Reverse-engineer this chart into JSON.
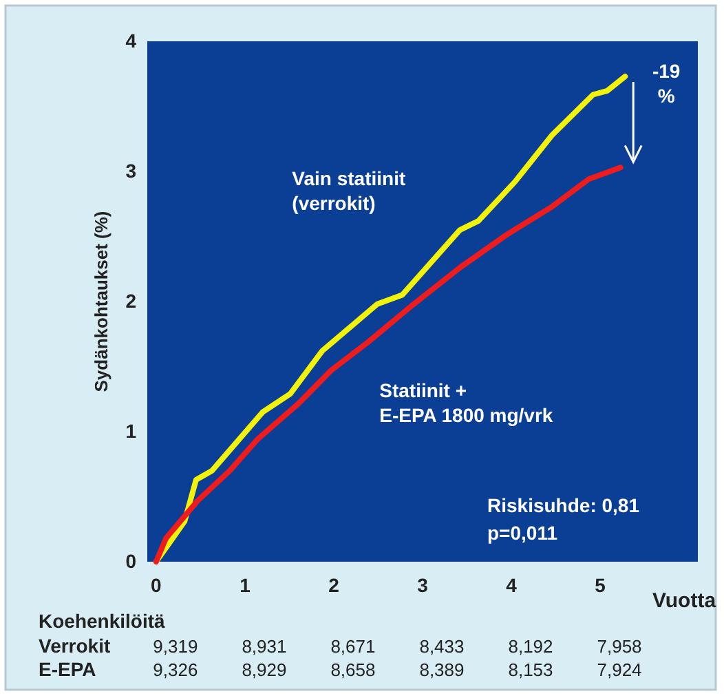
{
  "chart_data": {
    "type": "line",
    "ylabel": "Sydänkohtaukset (%)",
    "xlabel": "Vuotta",
    "xlim": [
      -0.1,
      6.1
    ],
    "ylim": [
      0,
      4
    ],
    "xticks": [
      0,
      1,
      2,
      3,
      4,
      5
    ],
    "yticks": [
      0,
      1,
      2,
      3,
      4
    ],
    "grid": false,
    "marker": "none",
    "line_style": "solid",
    "series": [
      {
        "name": "Vain statiinit (verrokit)",
        "color": "#f2f20a",
        "x": [
          0,
          0.32,
          0.45,
          0.63,
          1.2,
          1.51,
          1.87,
          2.49,
          2.77,
          3.42,
          3.63,
          4.04,
          4.46,
          4.92,
          5.08,
          5.28
        ],
        "values": [
          0,
          0.31,
          0.63,
          0.7,
          1.15,
          1.29,
          1.62,
          1.98,
          2.05,
          2.55,
          2.62,
          2.92,
          3.28,
          3.59,
          3.62,
          3.73
        ]
      },
      {
        "name": "Statiinit + E-EPA 1800 mg/vrk",
        "color": "#ee1c1c",
        "x": [
          0,
          0.11,
          0.47,
          0.83,
          1.14,
          1.61,
          1.97,
          2.39,
          2.9,
          3.42,
          3.94,
          4.46,
          4.87,
          5.23
        ],
        "values": [
          0,
          0.18,
          0.47,
          0.7,
          0.94,
          1.22,
          1.47,
          1.69,
          1.98,
          2.26,
          2.51,
          2.73,
          2.94,
          3.03
        ]
      }
    ],
    "annotations": [
      "-19 %",
      "Riskisuhde: 0,81\np=0,011",
      "Koehenkilöitä",
      "Verrokit",
      "9,319 8,931 8,671 8,433 8,192 7,958",
      "E-EPA",
      "9,326 8,929 8,658 8,389 8,153 7,924"
    ]
  }
}
